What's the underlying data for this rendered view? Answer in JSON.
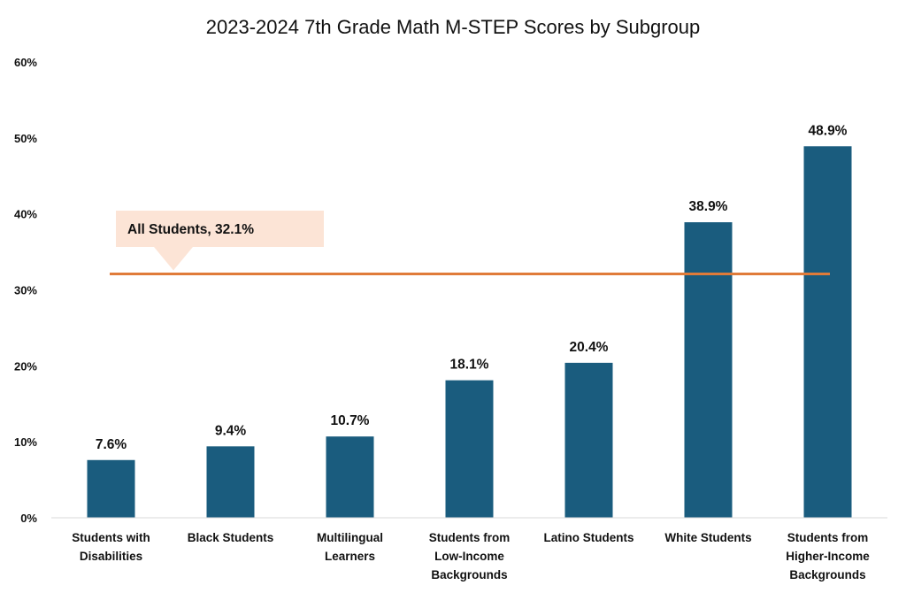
{
  "chart_data": {
    "type": "bar",
    "title": "2023-2024 7th Grade Math M-STEP Scores by Subgroup",
    "xlabel": "",
    "ylabel": "",
    "ylim": [
      0,
      60
    ],
    "yticks": [
      0,
      10,
      20,
      30,
      40,
      50,
      60
    ],
    "ytick_labels": [
      "0%",
      "10%",
      "20%",
      "30%",
      "40%",
      "50%",
      "60%"
    ],
    "grid": false,
    "categories": [
      [
        "Students with",
        "Disabilities"
      ],
      [
        "Black Students"
      ],
      [
        "Multilingual",
        "Learners"
      ],
      [
        "Students from",
        "Low-Income",
        "Backgrounds"
      ],
      [
        "Latino Students"
      ],
      [
        "White Students"
      ],
      [
        "Students from",
        "Higher-Income",
        "Backgrounds"
      ]
    ],
    "values": [
      7.6,
      9.4,
      10.7,
      18.1,
      20.4,
      38.9,
      48.9
    ],
    "data_labels": [
      "7.6%",
      "9.4%",
      "10.7%",
      "18.1%",
      "20.4%",
      "38.9%",
      "48.9%"
    ],
    "reference_line": {
      "value": 32.1,
      "label": "All Students, 32.1%",
      "color": "#e07b39",
      "callout_color": "#fce4d6"
    },
    "bar_color": "#1a5c7e"
  }
}
